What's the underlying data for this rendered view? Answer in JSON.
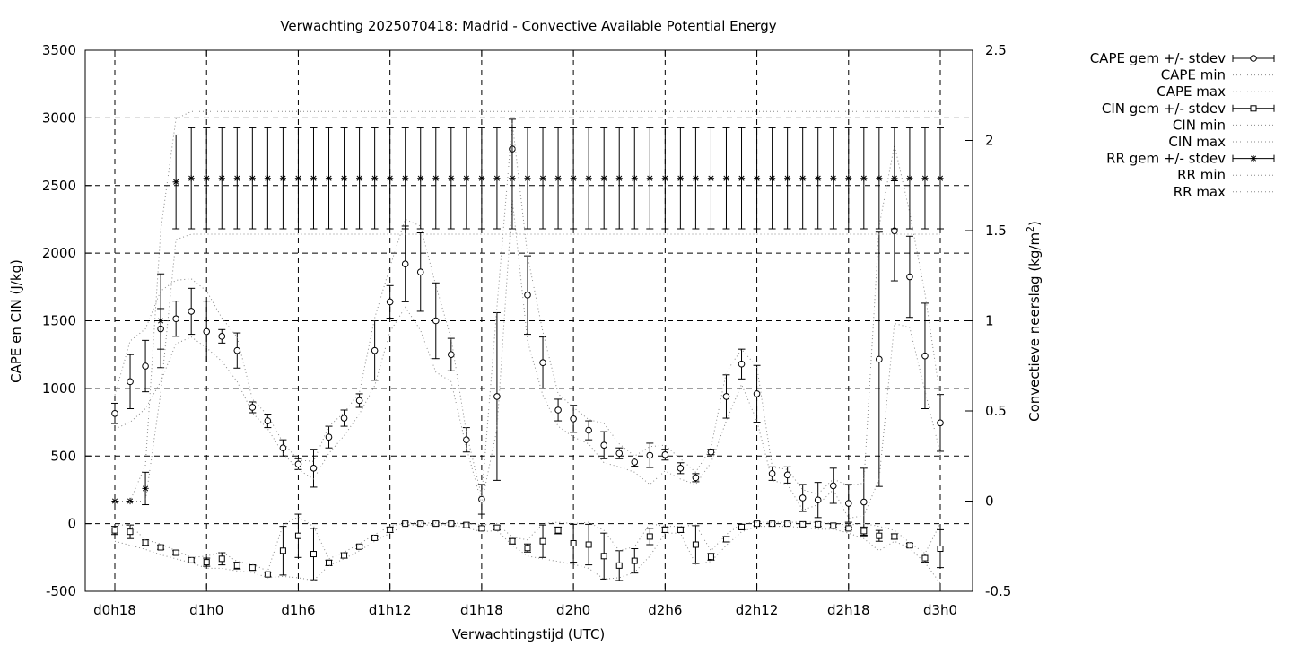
{
  "chart_data": {
    "type": "line",
    "title": "Verwachting 2025070418: Madrid - Convective Available Potential Energy",
    "xlabel": "Verwachtingstijd (UTC)",
    "ylabel": "CAPE en CIN (J/kg)",
    "y2label": "Convectieve neerslag (kg/m",
    "y2label_sup": "2",
    "y2label_end": ")",
    "grid": true,
    "legend_position": "outside-right",
    "xlim": [
      0,
      54
    ],
    "ylim": [
      -500,
      3500
    ],
    "y2lim": [
      -0.5,
      2.5
    ],
    "x_ticks": [
      0,
      6,
      12,
      18,
      24,
      30,
      36,
      42,
      48,
      54
    ],
    "x_tick_labels": [
      "d0h18",
      "d1h0",
      "d1h6",
      "d1h12",
      "d1h18",
      "d2h0",
      "d2h6",
      "d2h12",
      "d2h18",
      "d3h0"
    ],
    "y_ticks": [
      -500,
      0,
      500,
      1000,
      1500,
      2000,
      2500,
      3000,
      3500
    ],
    "y_tick_labels": [
      "-500",
      "0",
      "500",
      "1000",
      "1500",
      "2000",
      "2500",
      "3000",
      "3500"
    ],
    "y2_ticks": [
      -0.5,
      0,
      0.5,
      1,
      1.5,
      2,
      2.5
    ],
    "y2_tick_labels": [
      "-0.5",
      "0",
      "0.5",
      "1",
      "1.5",
      "2",
      "2.5"
    ],
    "x": [
      0,
      1,
      2,
      3,
      4,
      5,
      6,
      7,
      8,
      9,
      10,
      11,
      12,
      13,
      14,
      15,
      16,
      17,
      18,
      19,
      20,
      21,
      22,
      23,
      24,
      25,
      26,
      27,
      28,
      29,
      30,
      31,
      32,
      33,
      34,
      35,
      36,
      37,
      38,
      39,
      40,
      41,
      42,
      43,
      44,
      45,
      46,
      47,
      48,
      49,
      50,
      51,
      52,
      53,
      54
    ],
    "series": [
      {
        "name": "CAPE gem +/- stdev",
        "marker": "circle",
        "axis": "y",
        "mean": [
          815,
          1050,
          1165,
          1440,
          1515,
          1570,
          1420,
          1385,
          1280,
          860,
          760,
          560,
          440,
          410,
          640,
          780,
          910,
          1280,
          1640,
          1920,
          1860,
          1500,
          1250,
          620,
          180,
          940,
          2770,
          1690,
          1190,
          840,
          775,
          690,
          580,
          520,
          455,
          505,
          510,
          410,
          340,
          530,
          940,
          1180,
          960,
          370,
          360,
          190,
          175,
          280,
          150,
          160,
          1215,
          2165,
          1825,
          1240,
          745
        ],
        "stdev": [
          75,
          200,
          190,
          150,
          130,
          170,
          225,
          50,
          130,
          40,
          50,
          60,
          40,
          140,
          80,
          60,
          50,
          220,
          120,
          280,
          290,
          280,
          120,
          90,
          110,
          620,
          220,
          290,
          190,
          80,
          100,
          70,
          100,
          40,
          30,
          90,
          40,
          40,
          30,
          20,
          160,
          110,
          210,
          50,
          60,
          100,
          130,
          130,
          140,
          250,
          940,
          370,
          300,
          390,
          210
        ]
      },
      {
        "name": "CAPE min",
        "axis": "y",
        "values": [
          700,
          750,
          850,
          1050,
          1330,
          1380,
          1300,
          1200,
          1050,
          820,
          700,
          520,
          400,
          330,
          520,
          650,
          810,
          1020,
          1420,
          1600,
          1430,
          1120,
          1050,
          560,
          150,
          700,
          2400,
          1350,
          950,
          720,
          640,
          590,
          450,
          420,
          380,
          290,
          390,
          330,
          290,
          450,
          760,
          1030,
          760,
          320,
          290,
          100,
          140,
          250,
          40,
          60,
          330,
          1480,
          1450,
          980,
          520
        ]
      },
      {
        "name": "CAPE max",
        "axis": "y",
        "values": [
          950,
          1350,
          1440,
          1720,
          1800,
          1810,
          1720,
          1520,
          1380,
          920,
          800,
          600,
          470,
          460,
          720,
          820,
          970,
          1520,
          1900,
          2250,
          2200,
          1760,
          1370,
          670,
          200,
          1600,
          2970,
          1980,
          1420,
          960,
          860,
          770,
          740,
          590,
          500,
          570,
          580,
          480,
          380,
          560,
          1120,
          1290,
          1160,
          420,
          400,
          250,
          220,
          330,
          280,
          300,
          2200,
          2800,
          2300,
          1700,
          930
        ]
      },
      {
        "name": "CIN gem +/- stdev",
        "marker": "square",
        "axis": "y",
        "mean": [
          -50,
          -60,
          -140,
          -175,
          -215,
          -270,
          -285,
          -260,
          -310,
          -325,
          -375,
          -200,
          -90,
          -225,
          -290,
          -235,
          -170,
          -105,
          -45,
          0,
          0,
          0,
          0,
          -10,
          -35,
          -30,
          -130,
          -180,
          -130,
          -50,
          -145,
          -155,
          -240,
          -310,
          -275,
          -95,
          -45,
          -45,
          -155,
          -245,
          -115,
          -25,
          0,
          0,
          0,
          -5,
          -5,
          -15,
          -35,
          -55,
          -90,
          -95,
          -160,
          -255,
          -185
        ],
        "stdev": [
          30,
          50,
          20,
          15,
          15,
          15,
          30,
          45,
          25,
          20,
          15,
          180,
          160,
          190,
          20,
          20,
          15,
          15,
          20,
          10,
          10,
          10,
          10,
          15,
          15,
          15,
          20,
          30,
          120,
          25,
          140,
          150,
          170,
          110,
          90,
          60,
          20,
          20,
          140,
          25,
          20,
          20,
          15,
          10,
          10,
          15,
          15,
          10,
          10,
          30,
          40,
          20,
          15,
          30,
          140
        ]
      },
      {
        "name": "CIN min",
        "axis": "y",
        "values": [
          -130,
          -160,
          -190,
          -230,
          -260,
          -290,
          -330,
          -330,
          -350,
          -360,
          -400,
          -390,
          -400,
          -420,
          -310,
          -260,
          -200,
          -130,
          -70,
          -10,
          -10,
          -10,
          -10,
          -30,
          -60,
          -50,
          -160,
          -240,
          -260,
          -280,
          -300,
          -330,
          -410,
          -400,
          -360,
          -240,
          -70,
          -70,
          -300,
          -280,
          -160,
          -60,
          -20,
          -20,
          -20,
          -30,
          -40,
          -40,
          -70,
          -110,
          -200,
          -130,
          -180,
          -290,
          -440
        ]
      },
      {
        "name": "CIN max",
        "axis": "y",
        "values": [
          -10,
          -10,
          -120,
          -150,
          -200,
          -250,
          -240,
          -210,
          -280,
          -300,
          -350,
          -10,
          50,
          -20,
          -260,
          -210,
          -150,
          -80,
          -20,
          5,
          5,
          5,
          5,
          0,
          -10,
          0,
          -100,
          -120,
          0,
          10,
          0,
          10,
          -50,
          -200,
          -170,
          0,
          -20,
          -20,
          -10,
          -200,
          -80,
          0,
          10,
          10,
          10,
          10,
          10,
          0,
          -10,
          0,
          -20,
          -50,
          -140,
          -220,
          0
        ]
      },
      {
        "name": "RR gem +/- stdev",
        "marker": "star",
        "axis": "y2",
        "mean": [
          0,
          0,
          0.07,
          1.0,
          1.77,
          1.79,
          1.79,
          1.79,
          1.79,
          1.79,
          1.79,
          1.79,
          1.79,
          1.79,
          1.79,
          1.79,
          1.79,
          1.79,
          1.79,
          1.79,
          1.79,
          1.79,
          1.79,
          1.79,
          1.79,
          1.79,
          1.79,
          1.79,
          1.79,
          1.79,
          1.79,
          1.79,
          1.79,
          1.79,
          1.79,
          1.79,
          1.79,
          1.79,
          1.79,
          1.79,
          1.79,
          1.79,
          1.79,
          1.79,
          1.79,
          1.79,
          1.79,
          1.79,
          1.79,
          1.79,
          1.79,
          1.79,
          1.79,
          1.79,
          1.79
        ],
        "stdev": [
          0,
          0,
          0.09,
          0.26,
          0.26,
          0.28,
          0.28,
          0.28,
          0.28,
          0.28,
          0.28,
          0.28,
          0.28,
          0.28,
          0.28,
          0.28,
          0.28,
          0.28,
          0.28,
          0.28,
          0.28,
          0.28,
          0.28,
          0.28,
          0.28,
          0.28,
          0.28,
          0.28,
          0.28,
          0.28,
          0.28,
          0.28,
          0.28,
          0.28,
          0.28,
          0.28,
          0.28,
          0.28,
          0.28,
          0.28,
          0.28,
          0.28,
          0.28,
          0.28,
          0.28,
          0.28,
          0.28,
          0.28,
          0.28,
          0.28,
          0.28,
          0.28,
          0.28,
          0.28,
          0.28
        ]
      },
      {
        "name": "RR min",
        "axis": "y2",
        "values": [
          0,
          0,
          0,
          0.6,
          1.45,
          1.48,
          1.48,
          1.48,
          1.48,
          1.48,
          1.48,
          1.48,
          1.48,
          1.48,
          1.48,
          1.48,
          1.48,
          1.48,
          1.48,
          1.48,
          1.48,
          1.48,
          1.48,
          1.48,
          1.48,
          1.48,
          1.48,
          1.48,
          1.48,
          1.48,
          1.48,
          1.48,
          1.48,
          1.48,
          1.48,
          1.48,
          1.48,
          1.48,
          1.48,
          1.48,
          1.48,
          1.48,
          1.48,
          1.48,
          1.48,
          1.48,
          1.48,
          1.48,
          1.48,
          1.48,
          1.48,
          1.48,
          1.48,
          1.48,
          1.48
        ]
      },
      {
        "name": "RR max",
        "axis": "y2",
        "values": [
          0,
          0,
          0.2,
          1.5,
          2.12,
          2.16,
          2.16,
          2.16,
          2.16,
          2.16,
          2.16,
          2.16,
          2.16,
          2.16,
          2.16,
          2.16,
          2.16,
          2.16,
          2.16,
          2.16,
          2.16,
          2.16,
          2.16,
          2.16,
          2.16,
          2.16,
          2.16,
          2.16,
          2.16,
          2.16,
          2.16,
          2.16,
          2.16,
          2.16,
          2.16,
          2.16,
          2.16,
          2.16,
          2.16,
          2.16,
          2.16,
          2.16,
          2.16,
          2.16,
          2.16,
          2.16,
          2.16,
          2.16,
          2.16,
          2.16,
          2.16,
          2.16,
          2.16,
          2.16,
          2.16
        ]
      }
    ]
  }
}
